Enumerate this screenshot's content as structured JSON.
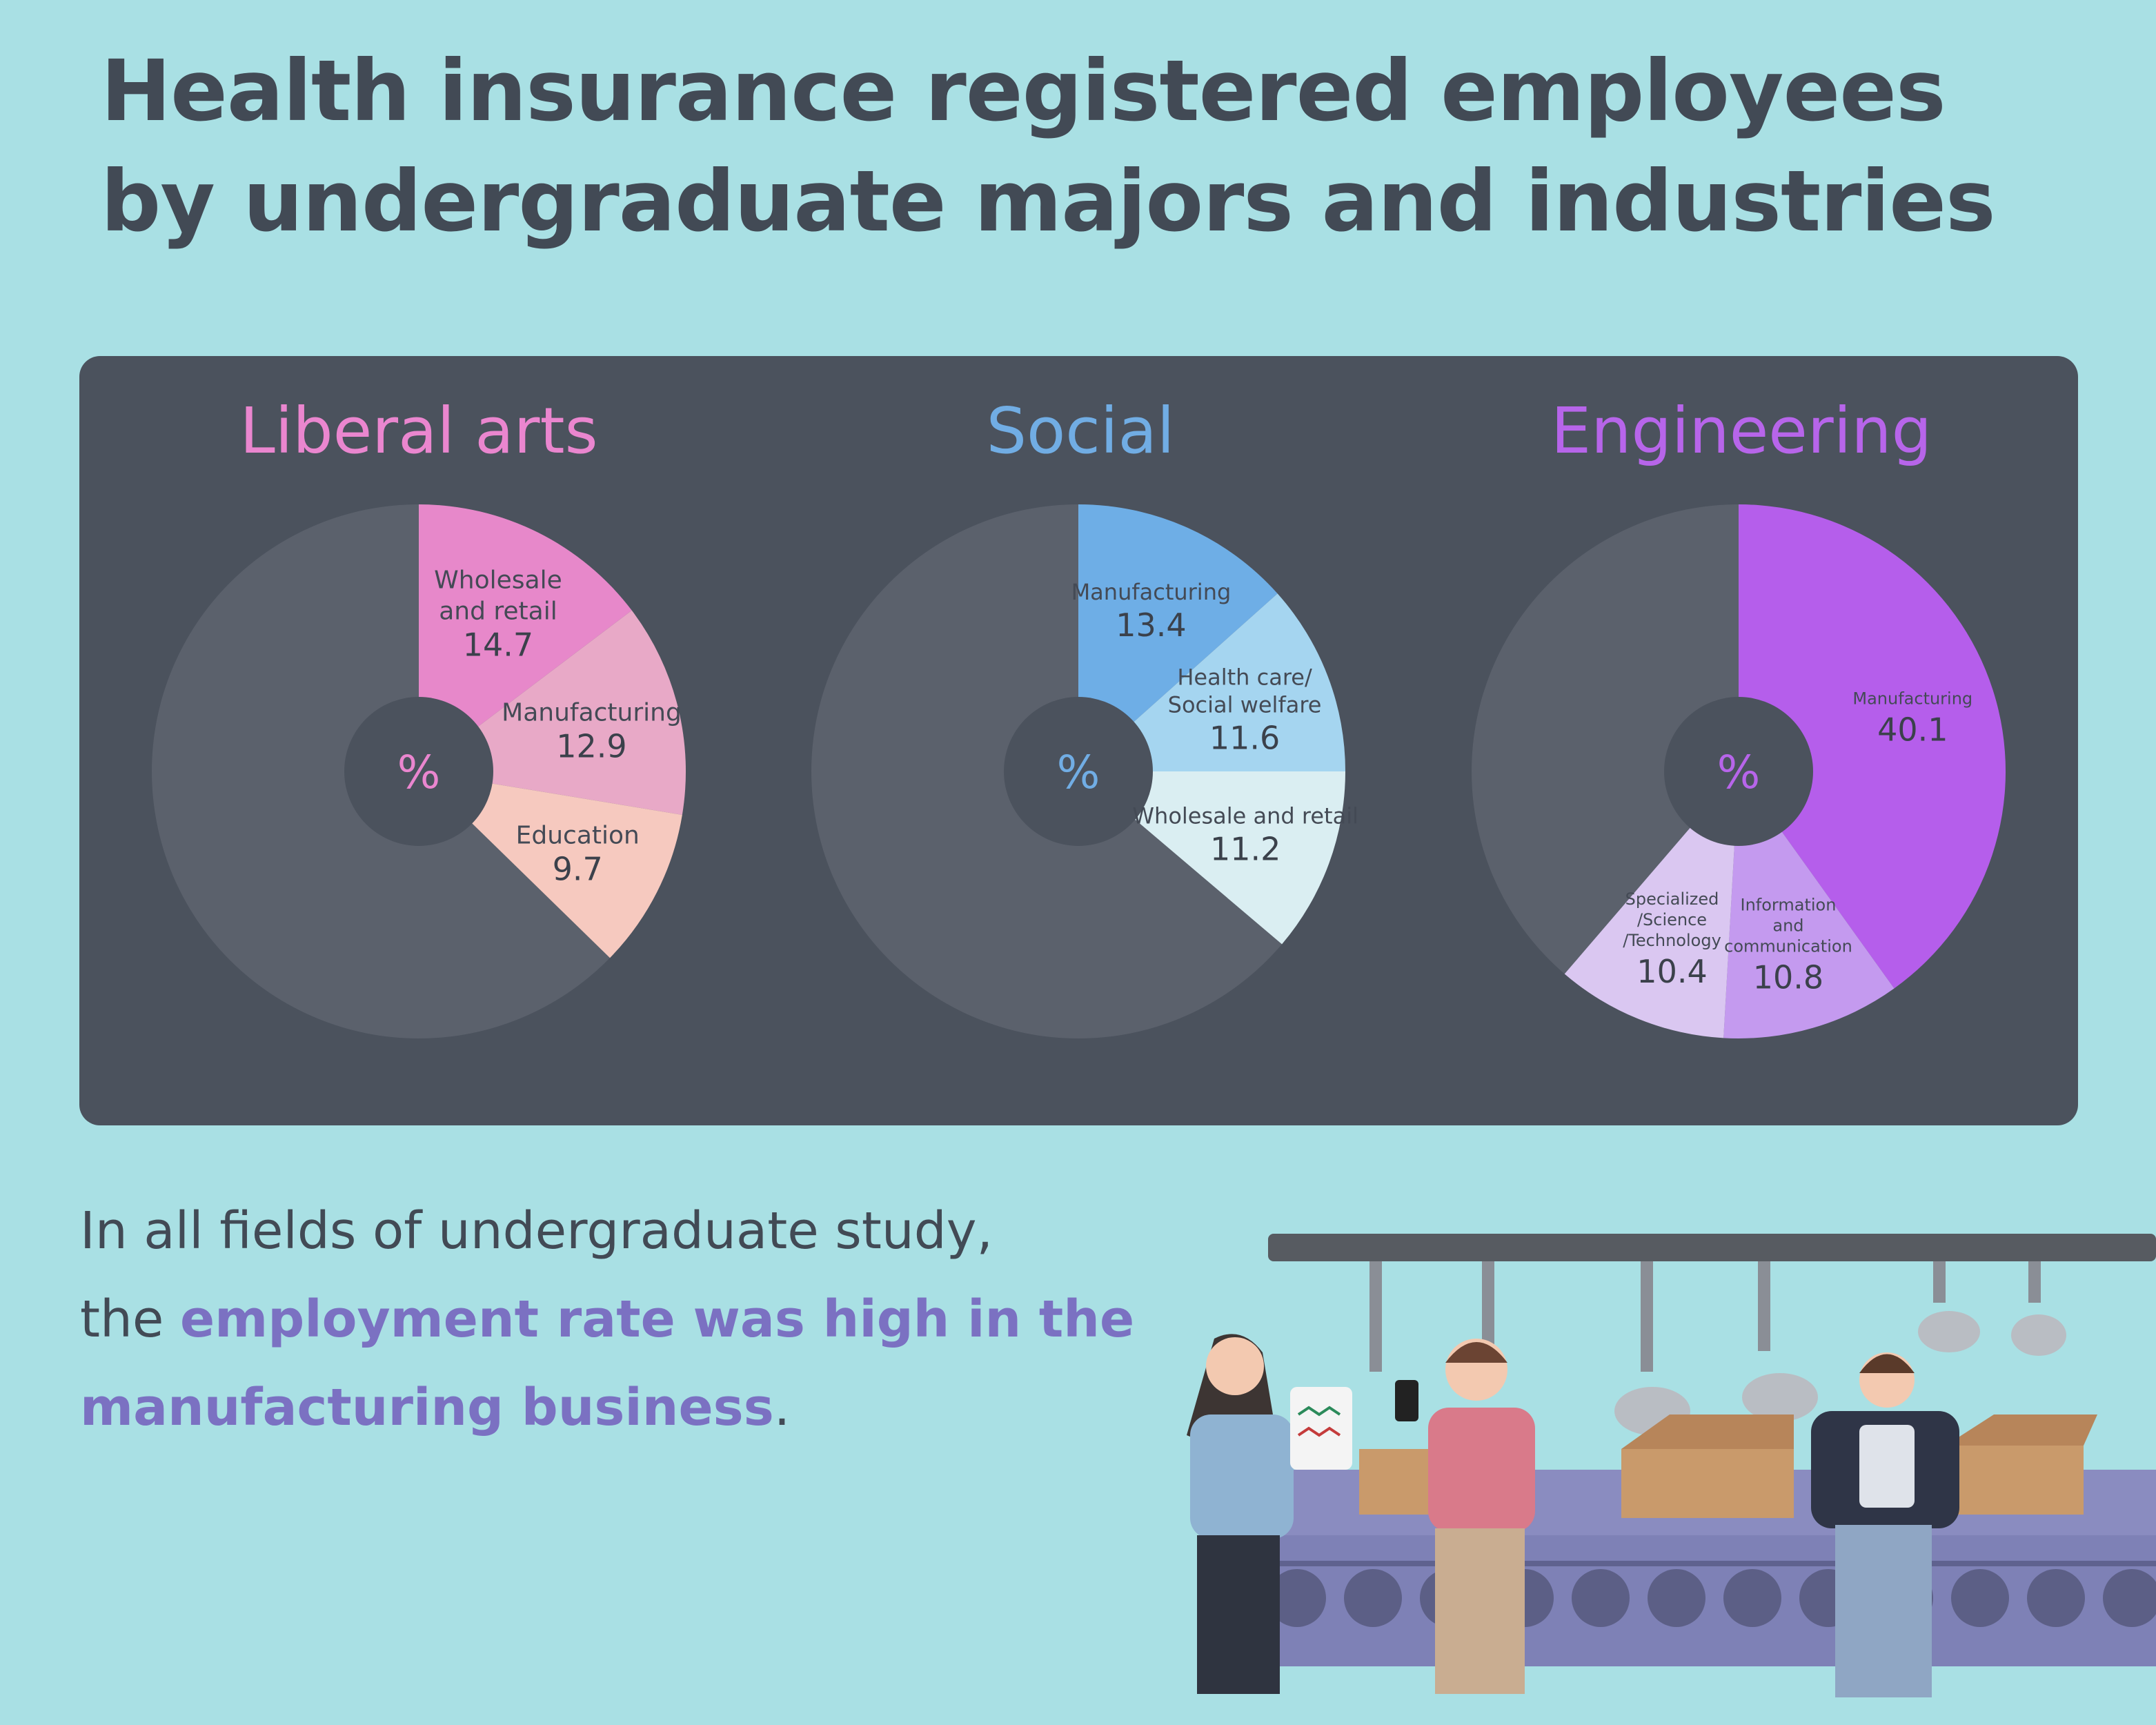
{
  "title": {
    "line1": "Health insurance registered employees",
    "line2": "by undergraduate majors and industries"
  },
  "colors": {
    "background": "#a9e0e4",
    "panel": "#4b525d",
    "pie_remainder": "#5b616c",
    "hole": "#4b525d",
    "title_text": "#424a55",
    "highlight": "#7b71c2"
  },
  "chart_data": [
    {
      "type": "pie",
      "title": "Liberal arts",
      "title_color": "#ea86cf",
      "center_label": "%",
      "slices": [
        {
          "label": [
            "Wholesale",
            "and retail"
          ],
          "value": 14.7,
          "color": "#e788ca"
        },
        {
          "label": [
            "Manufacturing"
          ],
          "value": 12.9,
          "color": "#e8a9c7"
        },
        {
          "label": [
            "Education"
          ],
          "value": 9.7,
          "color": "#f6c9bf"
        }
      ]
    },
    {
      "type": "pie",
      "title": "Social",
      "title_color": "#71ade4",
      "center_label": "%",
      "slices": [
        {
          "label": [
            "Manufacturing"
          ],
          "value": 13.4,
          "color": "#6eaee6"
        },
        {
          "label": [
            "Health care/",
            "Social welfare"
          ],
          "value": 11.6,
          "color": "#a5d5f0"
        },
        {
          "label": [
            "Wholesale and retail"
          ],
          "value": 11.2,
          "color": "#daeef2"
        }
      ]
    },
    {
      "type": "pie",
      "title": "Engineering",
      "title_color": "#b765ea",
      "center_label": "%",
      "slices": [
        {
          "label": [
            "Manufacturing"
          ],
          "value": 40.1,
          "color": "#b55eeb"
        },
        {
          "label": [
            "Information",
            "and",
            "communication"
          ],
          "value": 10.8,
          "color": "#c49aef"
        },
        {
          "label": [
            "Specialized",
            "/Science",
            "/Technology"
          ],
          "value": 10.4,
          "color": "#dac7f1"
        }
      ]
    }
  ],
  "caption": {
    "line1": "In all fields of undergraduate study,",
    "line2_plain": "the ",
    "line2_highlight": "employment rate was high in the",
    "line3_highlight": "manufacturing business",
    "line3_plain": "."
  }
}
